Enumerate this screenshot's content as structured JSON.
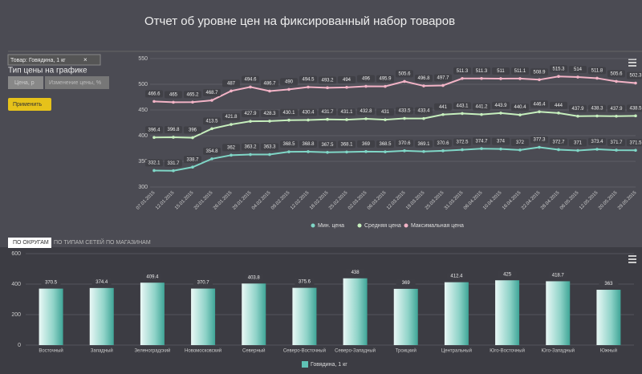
{
  "header": {
    "title": "Отчет об уровне цен на фиксированный набор товаров"
  },
  "controls": {
    "select": "Товар: Говядина, 1 кг",
    "select_clear": "×",
    "price_type_label": "Тип цены на графике",
    "buttons": [
      "Цена, р",
      "Изменение цены, %"
    ],
    "apply": "Применить"
  },
  "tabs": [
    "ПО ОКРУГАМ",
    "ПО ТИПАМ СЕТЕЙ",
    "ПО МАГАЗИНАМ"
  ],
  "chart_data": [
    {
      "type": "line",
      "categories": [
        "07.01.2015",
        "12.01.2015",
        "15.01.2015",
        "20.01.2015",
        "26.01.2015",
        "29.01.2015",
        "04.02.2015",
        "09.02.2015",
        "12.02.2015",
        "18.02.2015",
        "25.02.2015",
        "02.03.2015",
        "06.03.2015",
        "12.03.2015",
        "19.03.2015",
        "25.03.2015",
        "31.03.2015",
        "06.04.2015",
        "10.04.2015",
        "16.04.2015",
        "22.04.2015",
        "28.04.2015",
        "06.05.2015",
        "12.05.2015",
        "20.05.2015",
        "29.05.2015"
      ],
      "ylim": [
        300,
        550
      ],
      "yticks": [
        300,
        350,
        400,
        450,
        500,
        550
      ],
      "grid": true,
      "series": [
        {
          "name": "Мин. цена",
          "color": "#7fd6c6",
          "values": [
            332.1,
            331.7,
            338.7,
            354.8,
            362,
            363.2,
            363.3,
            368.5,
            368.8,
            367.5,
            368.1,
            369,
            368.5,
            370.6,
            369.1,
            370.6,
            372.5,
            374.7,
            374,
            372,
            377.3,
            372.7,
            371,
            373.4,
            371.7,
            371.5
          ]
        },
        {
          "name": "Средняя цена",
          "color": "#c6efbd",
          "values": [
            396.4,
            396.8,
            396,
            413.5,
            421.8,
            427.9,
            428.3,
            430.1,
            430.4,
            431.7,
            431.1,
            432.8,
            431,
            433.5,
            433.4,
            441,
            443.1,
            441.2,
            443.9,
            440.4,
            446.4,
            444,
            437.9,
            438.3,
            437.9,
            438.5
          ]
        },
        {
          "name": "Максимальная цена",
          "color": "#f2b3c6",
          "values": [
            466.6,
            465,
            465.2,
            468.7,
            487,
            494.6,
            486.7,
            490,
            494.5,
            493.2,
            494,
            496,
            495.9,
            505.6,
            496.8,
            497.7,
            511.3,
            511.3,
            511,
            511.1,
            508.9,
            515.3,
            514,
            511.8,
            505.6,
            502.3
          ]
        }
      ]
    },
    {
      "type": "bar",
      "categories": [
        "Восточный",
        "Западный",
        "Зеленоградский",
        "Новомосковский",
        "Северный",
        "Северо-Восточный",
        "Северо-Западный",
        "Троицкий",
        "Центральный",
        "Юго-Восточный",
        "Юго-Западный",
        "Южный"
      ],
      "values": [
        370.5,
        374.4,
        409.4,
        370.7,
        403.8,
        375.6,
        438,
        369,
        412.4,
        425,
        418.7,
        363
      ],
      "series_name": "Говядина, 1 кг",
      "color": "#5fc1b4",
      "ylim": [
        0,
        600
      ],
      "yticks": [
        0,
        200,
        400,
        600
      ],
      "grid": true
    }
  ]
}
